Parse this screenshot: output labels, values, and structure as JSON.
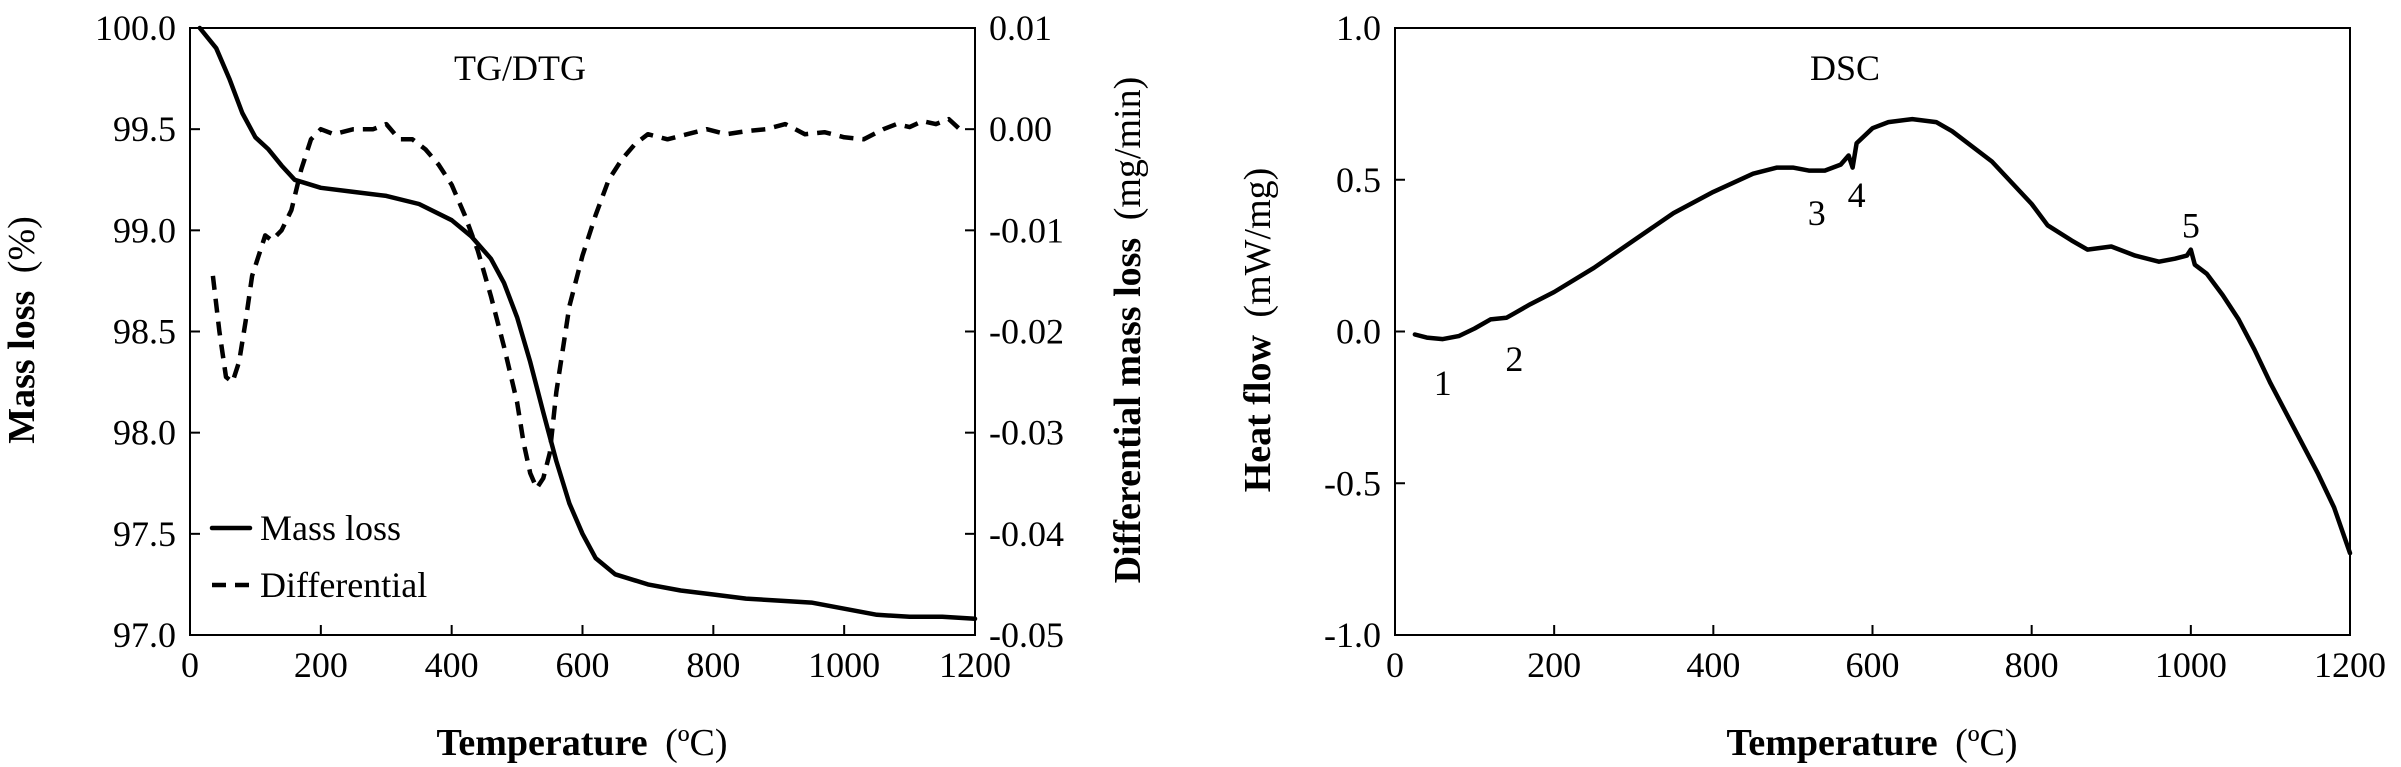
{
  "chart_data": [
    {
      "type": "line",
      "title": "TG/DTG",
      "xlabel": "Temperature",
      "xunit": "(ºC)",
      "ylabel": "Mass loss",
      "yunit": "(%)",
      "y2label": "Differential mass loss",
      "y2unit": "(mg/min)",
      "xlim": [
        0,
        1200
      ],
      "ylim": [
        97.0,
        100.0
      ],
      "y2lim": [
        -0.05,
        0.01
      ],
      "xticks": [
        "0",
        "200",
        "400",
        "600",
        "800",
        "1000",
        "1200"
      ],
      "yticks": [
        "97.0",
        "97.5",
        "98.0",
        "98.5",
        "99.0",
        "99.5",
        "100.0"
      ],
      "y2ticks": [
        "-0.05",
        "-0.04",
        "-0.03",
        "-0.02",
        "-0.01",
        "0.00",
        "0.01"
      ],
      "grid": false,
      "legend_position": "bottom-left",
      "series": [
        {
          "name": "Mass loss",
          "axis": "left",
          "style": "solid",
          "color": "#000000",
          "x": [
            15,
            40,
            60,
            80,
            100,
            120,
            140,
            160,
            180,
            200,
            250,
            300,
            350,
            400,
            430,
            460,
            480,
            500,
            520,
            540,
            560,
            580,
            600,
            620,
            650,
            700,
            750,
            800,
            850,
            900,
            950,
            1000,
            1050,
            1100,
            1150,
            1200
          ],
          "y": [
            100.0,
            99.9,
            99.75,
            99.58,
            99.46,
            99.4,
            99.32,
            99.25,
            99.23,
            99.21,
            99.19,
            99.17,
            99.13,
            99.05,
            98.97,
            98.86,
            98.74,
            98.57,
            98.35,
            98.1,
            97.86,
            97.65,
            97.5,
            97.38,
            97.3,
            97.25,
            97.22,
            97.2,
            97.18,
            97.17,
            97.16,
            97.13,
            97.1,
            97.09,
            97.09,
            97.08
          ]
        },
        {
          "name": "Differential",
          "axis": "right",
          "style": "dashed",
          "color": "#000000",
          "x": [
            35,
            45,
            55,
            65,
            75,
            85,
            95,
            105,
            115,
            125,
            140,
            155,
            170,
            185,
            200,
            220,
            250,
            280,
            300,
            320,
            340,
            360,
            380,
            400,
            420,
            440,
            460,
            480,
            500,
            510,
            520,
            530,
            540,
            550,
            560,
            580,
            600,
            620,
            640,
            660,
            680,
            700,
            730,
            760,
            790,
            820,
            850,
            880,
            910,
            940,
            970,
            1000,
            1030,
            1060,
            1080,
            1100,
            1120,
            1140,
            1160,
            1180
          ],
          "y": [
            -0.0145,
            -0.02,
            -0.0245,
            -0.025,
            -0.023,
            -0.019,
            -0.0145,
            -0.0125,
            -0.0105,
            -0.011,
            -0.01,
            -0.008,
            -0.004,
            -0.001,
            0.0,
            -0.0005,
            0.0,
            0.0,
            0.0005,
            -0.001,
            -0.001,
            -0.002,
            -0.0035,
            -0.0055,
            -0.0085,
            -0.012,
            -0.0165,
            -0.0215,
            -0.027,
            -0.031,
            -0.034,
            -0.0355,
            -0.0345,
            -0.032,
            -0.026,
            -0.0175,
            -0.0125,
            -0.0085,
            -0.005,
            -0.003,
            -0.0015,
            -0.0005,
            -0.001,
            -0.0005,
            0.0,
            -0.0005,
            -0.0002,
            0.0,
            0.0005,
            -0.0005,
            -0.0003,
            -0.0008,
            -0.001,
            0.0,
            0.0005,
            0.0002,
            0.0008,
            0.0005,
            0.001,
            -0.0002
          ]
        }
      ]
    },
    {
      "type": "line",
      "title": "DSC",
      "xlabel": "Temperature",
      "xunit": "(ºC)",
      "ylabel": "Heat flow",
      "yunit": "(mW/mg)",
      "xlim": [
        0,
        1200
      ],
      "ylim": [
        -1.0,
        1.0
      ],
      "xticks": [
        "0",
        "200",
        "400",
        "600",
        "800",
        "1000",
        "1200"
      ],
      "yticks": [
        "-1.0",
        "-0.5",
        "0.0",
        "0.5",
        "1.0"
      ],
      "grid": false,
      "series": [
        {
          "axis": "left",
          "style": "solid",
          "color": "#000000",
          "x": [
            25,
            40,
            60,
            80,
            100,
            120,
            140,
            150,
            170,
            200,
            250,
            300,
            350,
            400,
            450,
            480,
            500,
            520,
            540,
            560,
            570,
            575,
            580,
            600,
            620,
            650,
            680,
            700,
            750,
            800,
            820,
            850,
            870,
            900,
            930,
            960,
            980,
            995,
            1000,
            1005,
            1020,
            1040,
            1060,
            1080,
            1100,
            1130,
            1160,
            1180,
            1200
          ],
          "y": [
            -0.01,
            -0.02,
            -0.025,
            -0.015,
            0.01,
            0.04,
            0.045,
            0.06,
            0.09,
            0.13,
            0.21,
            0.3,
            0.39,
            0.46,
            0.52,
            0.54,
            0.54,
            0.53,
            0.53,
            0.55,
            0.58,
            0.54,
            0.62,
            0.67,
            0.69,
            0.7,
            0.69,
            0.66,
            0.56,
            0.42,
            0.35,
            0.3,
            0.27,
            0.28,
            0.25,
            0.23,
            0.24,
            0.25,
            0.27,
            0.22,
            0.19,
            0.12,
            0.04,
            -0.06,
            -0.17,
            -0.32,
            -0.47,
            -0.58,
            -0.73
          ]
        }
      ],
      "annotations": [
        {
          "text": "1",
          "x": 60,
          "y": -0.17
        },
        {
          "text": "2",
          "x": 150,
          "y": -0.09
        },
        {
          "text": "3",
          "x": 530,
          "y": 0.39
        },
        {
          "text": "4",
          "x": 580,
          "y": 0.45
        },
        {
          "text": "5",
          "x": 1000,
          "y": 0.35
        }
      ]
    }
  ]
}
